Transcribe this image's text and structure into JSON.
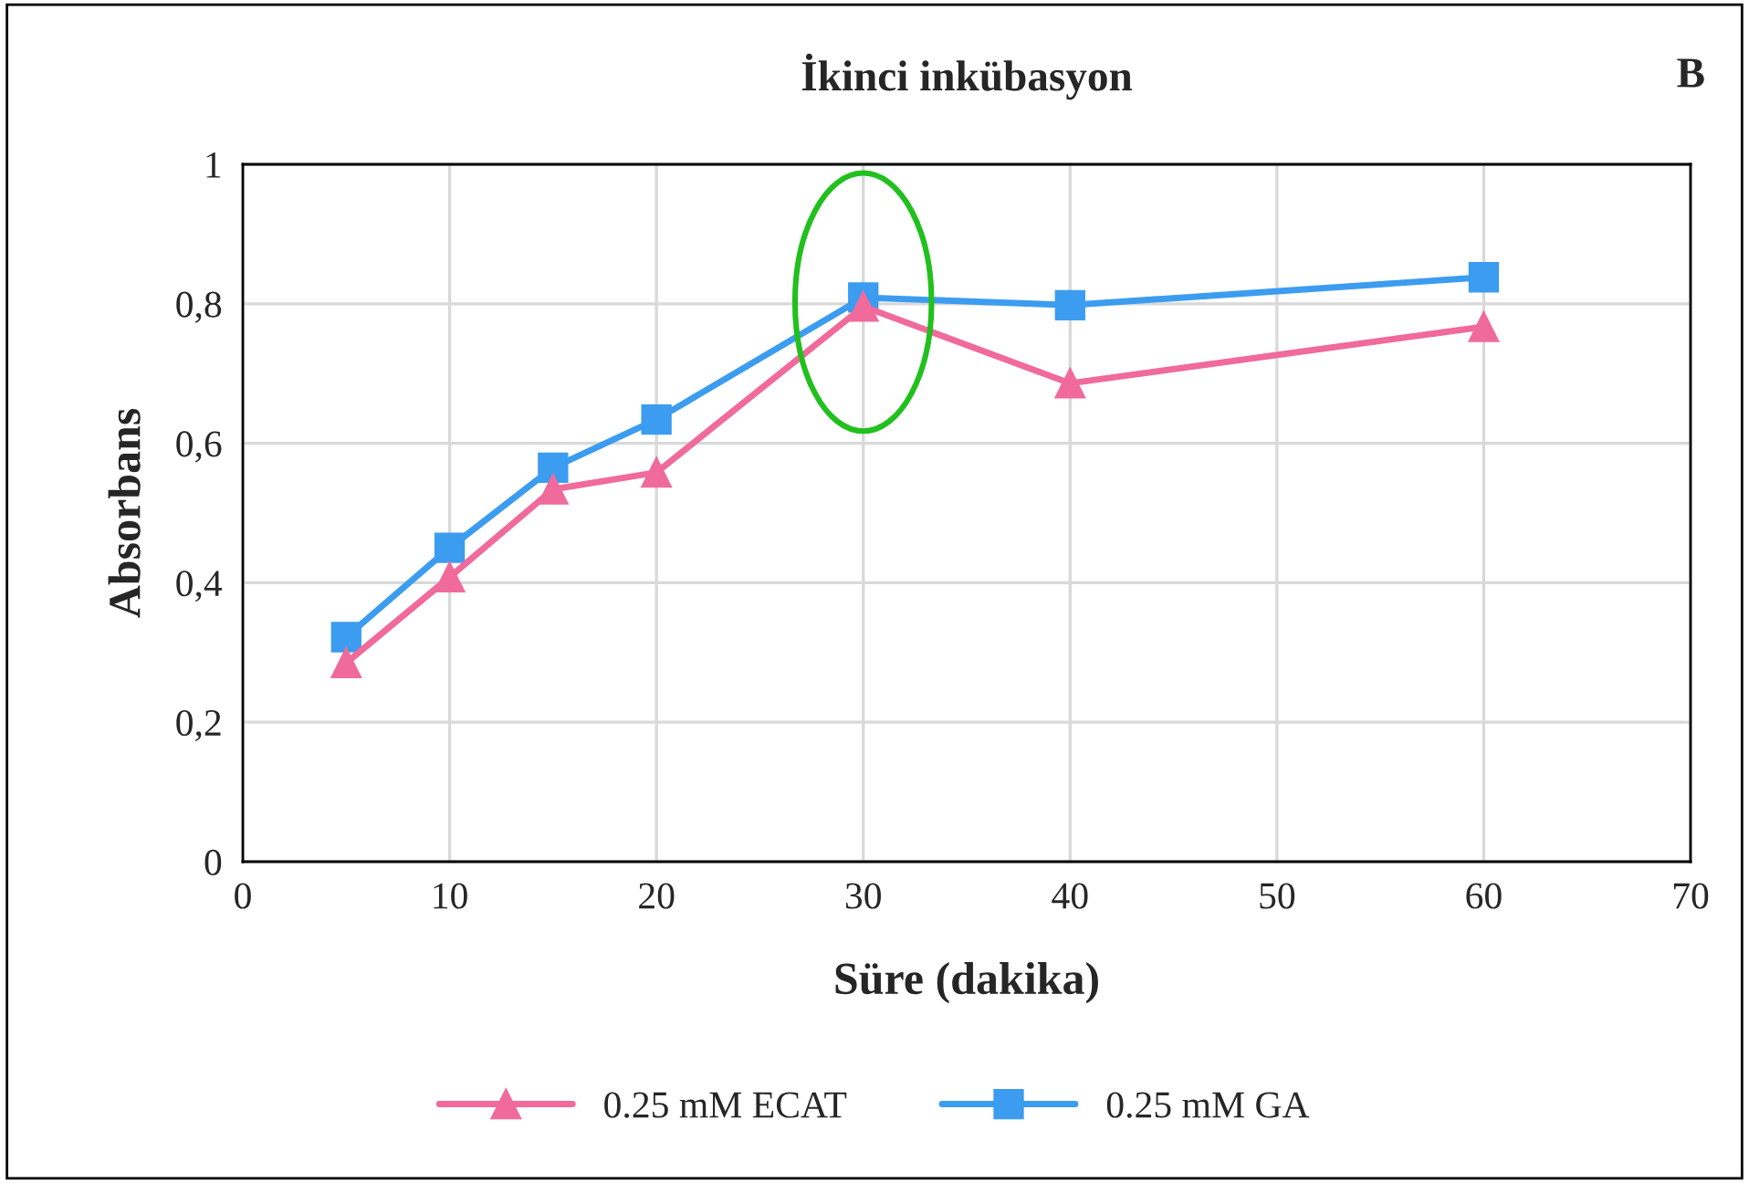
{
  "chart_data": {
    "type": "line",
    "title": "İkinci inkübasyon",
    "xlabel": "Süre (dakika)",
    "ylabel": "Absorbans",
    "annotations": [
      "B"
    ],
    "x": [
      5,
      10,
      15,
      20,
      30,
      40,
      60
    ],
    "series": [
      {
        "name": "0.25 mM ECAT",
        "color": "#f06a9b",
        "marker": "triangle",
        "values": [
          0.285,
          0.408,
          0.534,
          0.558,
          0.796,
          0.686,
          0.767
        ]
      },
      {
        "name": "0.25 mM GA",
        "color": "#3c9cf0",
        "marker": "square",
        "values": [
          0.322,
          0.45,
          0.565,
          0.634,
          0.809,
          0.798,
          0.838
        ]
      }
    ],
    "xlim": [
      0,
      70
    ],
    "xticks": [
      0,
      10,
      20,
      30,
      40,
      50,
      60,
      70
    ],
    "ylim": [
      0,
      1
    ],
    "yticks": [
      {
        "value": 0,
        "label": "0"
      },
      {
        "value": 0.2,
        "label": "0,2"
      },
      {
        "value": 0.4,
        "label": "0,4"
      },
      {
        "value": 0.6,
        "label": "0,6"
      },
      {
        "value": 0.8,
        "label": "0,8"
      },
      {
        "value": 1,
        "label": "1"
      }
    ],
    "grid": true,
    "legend": "bottom",
    "line_style": "solid"
  }
}
